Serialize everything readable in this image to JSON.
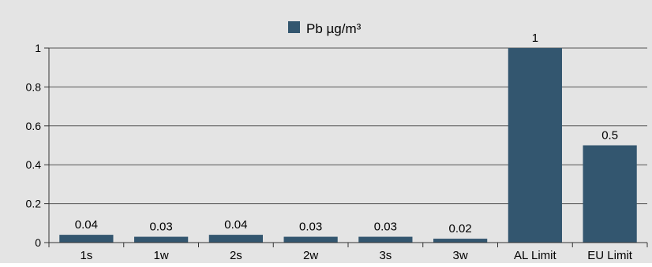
{
  "chart_data": {
    "type": "bar",
    "categories": [
      "1s",
      "1w",
      "2s",
      "2w",
      "3s",
      "3w",
      "AL Limit",
      "EU Limit"
    ],
    "series": [
      {
        "name": "Pb µg/m³",
        "values": [
          0.04,
          0.03,
          0.04,
          0.03,
          0.03,
          0.02,
          1,
          0.5
        ],
        "data_labels": [
          "0.04",
          "0.03",
          "0.04",
          "0.03",
          "0.03",
          "0.02",
          "1",
          "0.5"
        ]
      }
    ],
    "title": "",
    "xlabel": "",
    "ylabel": "",
    "ylim": [
      0,
      1
    ],
    "yticks": [
      0,
      0.2,
      0.4,
      0.6,
      0.8,
      1
    ],
    "ytick_labels": [
      "0",
      "0.2",
      "0.4",
      "0.6",
      "0.8",
      "1"
    ],
    "grid": true,
    "legend": "top-center",
    "colors": {
      "bar": "#33566f",
      "plot_background": "#e4e4e4",
      "gridline": "#555555"
    }
  }
}
